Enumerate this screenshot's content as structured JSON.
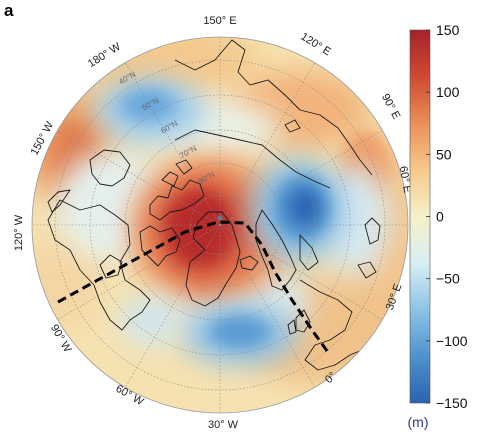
{
  "panel_label": "a",
  "map": {
    "projection": "north-polar-stereographic",
    "longitude_labels": [
      {
        "text": "150° E",
        "lon": 150
      },
      {
        "text": "120° E",
        "lon": 120
      },
      {
        "text": "90° E",
        "lon": 90
      },
      {
        "text": "60° E",
        "lon": 60
      },
      {
        "text": "30° E",
        "lon": 30
      },
      {
        "text": "0°",
        "lon": 0
      },
      {
        "text": "30° W",
        "lon": -30
      },
      {
        "text": "60° W",
        "lon": -60
      },
      {
        "text": "90° W",
        "lon": -90
      },
      {
        "text": "120° W",
        "lon": -120
      },
      {
        "text": "150° W",
        "lon": -150
      },
      {
        "text": "180° W",
        "lon": 180
      }
    ],
    "latitude_labels": [
      {
        "text": "40°N",
        "lat": 40
      },
      {
        "text": "50°N",
        "lat": 50
      },
      {
        "text": "60°N",
        "lat": 60
      },
      {
        "text": "70°N",
        "lat": 70
      },
      {
        "text": "80°N",
        "lat": 80
      }
    ],
    "anomaly_centers": [
      {
        "name": "greenland-high",
        "lon": -42,
        "lat": 75,
        "value_m": 150
      },
      {
        "name": "europe-east-low",
        "lon": 48,
        "lat": 68,
        "value_m": -150
      },
      {
        "name": "atlantic-low",
        "lon": -25,
        "lat": 48,
        "value_m": -90
      },
      {
        "name": "pacific-low",
        "lon": -175,
        "lat": 48,
        "value_m": -70
      },
      {
        "name": "north-pacific-high",
        "lon": -140,
        "lat": 42,
        "value_m": 55
      },
      {
        "name": "asia-high",
        "lon": 105,
        "lat": 50,
        "value_m": 45
      },
      {
        "name": "north-africa-high",
        "lon": 20,
        "lat": 30,
        "value_m": 40
      }
    ],
    "dashed_path": [
      {
        "lon": -95,
        "lat": 48
      },
      {
        "lon": -60,
        "lat": 66
      },
      {
        "lon": -15,
        "lat": 80
      },
      {
        "lon": 15,
        "lat": 67
      },
      {
        "lon": 10,
        "lat": 50
      },
      {
        "lon": 5,
        "lat": 40
      }
    ]
  },
  "colorbar": {
    "min": -150,
    "max": 150,
    "ticks": [
      "150",
      "100",
      "50",
      "0",
      "−50",
      "−100",
      "−150"
    ],
    "tick_values": [
      150,
      100,
      50,
      0,
      -50,
      -100,
      -150
    ],
    "unit": "(m)",
    "colors": [
      "#2b62b0",
      "#4e92cc",
      "#8ec4e6",
      "#d8eef5",
      "#f6f0c8",
      "#f6c98a",
      "#ea8f58",
      "#cf4a33",
      "#a5222a"
    ]
  }
}
